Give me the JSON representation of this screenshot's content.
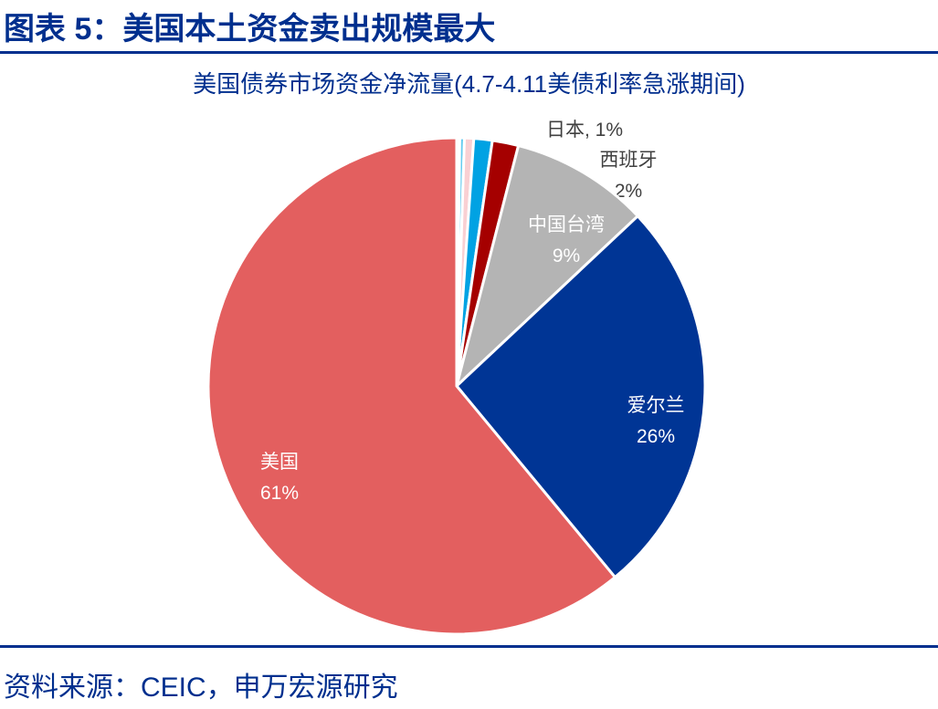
{
  "header": {
    "title": "图表 5：美国本土资金卖出规模最大"
  },
  "footer": {
    "source": "资料来源：CEIC，申万宏源研究"
  },
  "chart_data": {
    "type": "pie",
    "title": "美国债券市场资金净流量(4.7-4.11美债利率急涨期间)",
    "slices": [
      {
        "name": "",
        "value": 0.2,
        "color": "#f4f8fc",
        "label": ""
      },
      {
        "name": "",
        "value": 0.3,
        "color": "#66ccf0",
        "label": ""
      },
      {
        "name": "",
        "value": 0.6,
        "color": "#f9d0d3",
        "label": ""
      },
      {
        "name": "日本",
        "value": 1.2,
        "color": "#00a2e3",
        "label": "日本, 1%",
        "label_color": "#404040"
      },
      {
        "name": "西班牙",
        "value": 1.7,
        "color": "#a50000",
        "label": "西班牙",
        "pct": "2%",
        "label_color": "#404040"
      },
      {
        "name": "中国台湾",
        "value": 9,
        "color": "#b4b4b4",
        "label": "中国台湾",
        "pct": "9%",
        "label_color": "#ffffff"
      },
      {
        "name": "爱尔兰",
        "value": 26,
        "color": "#003595",
        "label": "爱尔兰",
        "pct": "26%",
        "label_color": "#ffffff"
      },
      {
        "name": "美国",
        "value": 61,
        "color": "#e35f5f",
        "label": "美国",
        "pct": "61%",
        "label_color": "#ffffff"
      }
    ]
  }
}
